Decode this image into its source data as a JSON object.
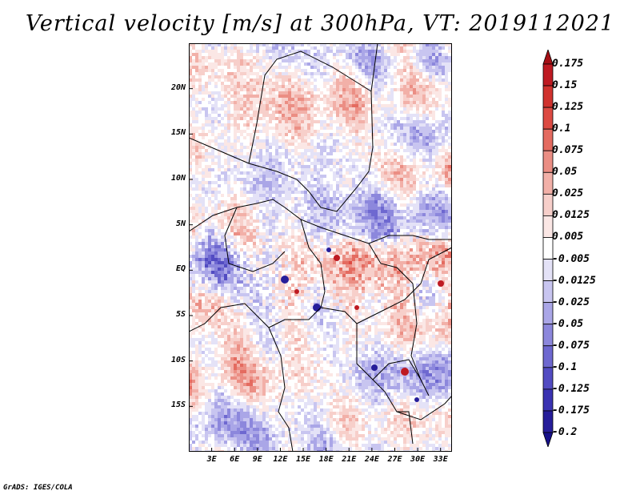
{
  "title": "Vertical velocity [m/s] at 300hPa, VT: 2019112021",
  "credit": "GrADS: IGES/COLA",
  "map": {
    "variable": "Vertical velocity",
    "units": "m/s",
    "level": "300hPa",
    "valid_time": "2019112021",
    "lat_labels": [
      "20N",
      "15N",
      "10N",
      "5N",
      "EQ",
      "5S",
      "10S",
      "15S"
    ],
    "lon_labels": [
      "3E",
      "6E",
      "9E",
      "12E",
      "15E",
      "18E",
      "21E",
      "24E",
      "27E",
      "30E",
      "33E"
    ],
    "lat_values": [
      20,
      15,
      10,
      5,
      0,
      -5,
      -10,
      -15
    ],
    "lon_values": [
      3,
      6,
      9,
      12,
      15,
      18,
      21,
      24,
      27,
      30,
      33
    ],
    "lat_range": [
      -20,
      25
    ],
    "lon_range": [
      0,
      34.5
    ]
  },
  "colorbar": {
    "labels": [
      "0.175",
      "0.15",
      "0.125",
      "0.1",
      "0.075",
      "0.05",
      "0.025",
      "0.0125",
      "0.005",
      "-0.005",
      "-0.0125",
      "-0.025",
      "-0.05",
      "-0.075",
      "-0.1",
      "-0.125",
      "-0.175",
      "-0.2"
    ],
    "colors": [
      "#a50f15",
      "#be1a22",
      "#d0322e",
      "#dc4a42",
      "#e46b60",
      "#eb8e84",
      "#f2b0a8",
      "#f7cfca",
      "#fbe7e5",
      "#ffffff",
      "#e4e2f7",
      "#c8c5f0",
      "#aaa6e7",
      "#8c87dc",
      "#6e68d0",
      "#524bc2",
      "#3a32b2",
      "#261d9a",
      "#16108a"
    ]
  }
}
